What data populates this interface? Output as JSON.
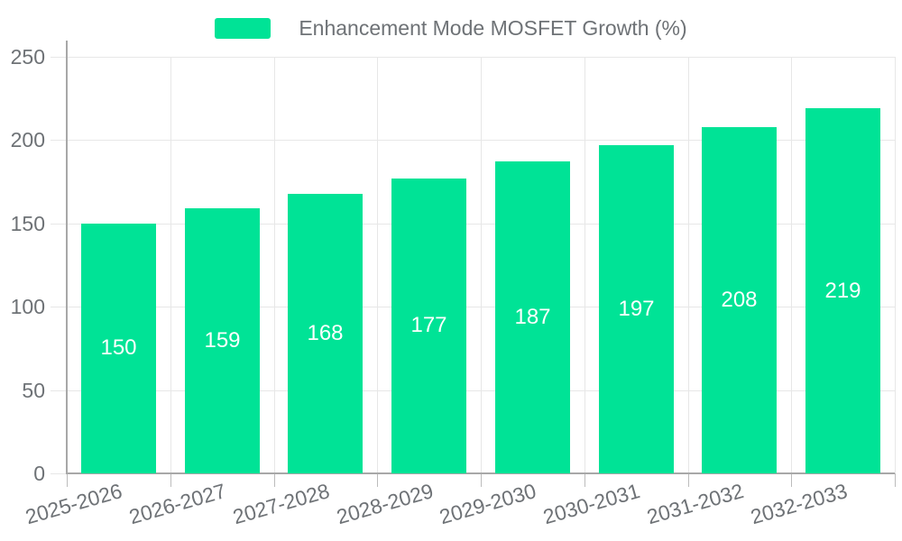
{
  "legend": {
    "position": "top",
    "items": [
      {
        "label": "Enhancement Mode MOSFET Growth (%)",
        "color": "#00E396"
      }
    ]
  },
  "chart_data": {
    "type": "bar",
    "title": "Enhancement Mode MOSFET Growth (%)",
    "categories": [
      "2025-2026",
      "2026-2027",
      "2027-2028",
      "2028-2029",
      "2029-2030",
      "2030-2031",
      "2031-2032",
      "2032-2033"
    ],
    "values": [
      150,
      159,
      168,
      177,
      187,
      197,
      208,
      219
    ],
    "series": [
      {
        "name": "Enhancement Mode MOSFET Growth (%)",
        "values": [
          150,
          159,
          168,
          177,
          187,
          197,
          208,
          219
        ]
      }
    ],
    "data_labels": [
      "150",
      "159",
      "168",
      "177",
      "187",
      "197",
      "208",
      "219"
    ],
    "xlabel": "",
    "ylabel": "",
    "ylim": [
      0,
      250
    ],
    "yticks": [
      0,
      50,
      100,
      150,
      200,
      250
    ],
    "grid": true,
    "legend_position": "top",
    "x_label_rotation_deg": -16,
    "colors": {
      "bar": "#00E396",
      "value_label": "#ffffff",
      "axis_label": "#6e7276",
      "legend_label": "#6e7276",
      "gridline": "#e7e7e7",
      "axis_line": "#a8a8a8",
      "tick": "#bcbcbc",
      "background": "#ffffff"
    }
  }
}
